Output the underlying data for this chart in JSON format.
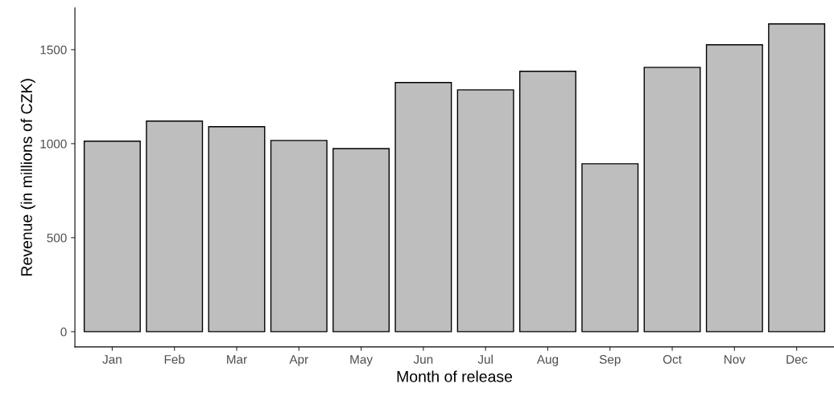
{
  "chart_data": {
    "type": "bar",
    "xlabel": "Month of release",
    "ylabel": "Revenue (in millions of CZK)",
    "categories": [
      "Jan",
      "Feb",
      "Mar",
      "Apr",
      "May",
      "Jun",
      "Jul",
      "Aug",
      "Sep",
      "Oct",
      "Nov",
      "Dec"
    ],
    "values": [
      1013,
      1120,
      1090,
      1017,
      974,
      1325,
      1286,
      1385,
      893,
      1406,
      1526,
      1637
    ],
    "color": "#bebebe",
    "ylim": [
      -81,
      1722
    ],
    "yticks": [
      0,
      500,
      1000,
      1500
    ],
    "grid": false
  }
}
